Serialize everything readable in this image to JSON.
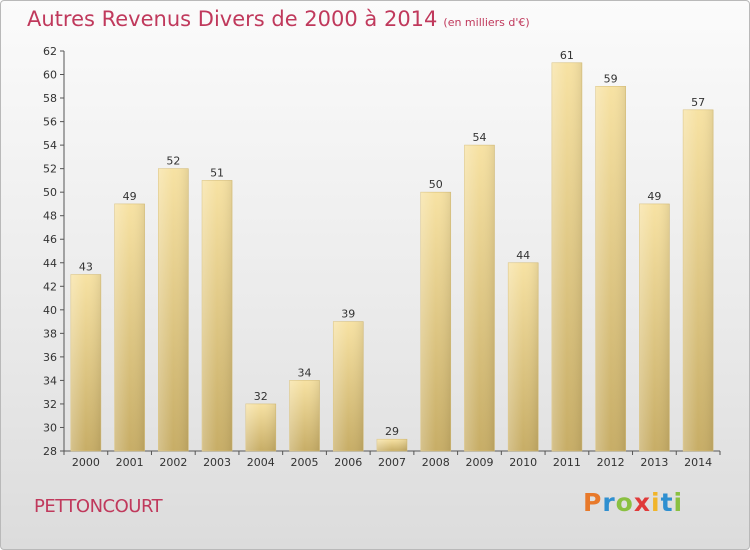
{
  "header": {
    "title": "Autres Revenus Divers de 2000 à 2014",
    "subtitle": "(en milliers d'€)"
  },
  "footer": {
    "commune": "PETTONCOURT",
    "logo_letters": [
      {
        "char": "P",
        "color": "#e8792a"
      },
      {
        "char": "r",
        "color": "#2e8fd0"
      },
      {
        "char": "o",
        "color": "#8ac041"
      },
      {
        "char": "x",
        "color": "#e03a3a"
      },
      {
        "char": "i",
        "color": "#f1b52a"
      },
      {
        "char": "t",
        "color": "#2e8fd0"
      },
      {
        "char": "i",
        "color": "#8ac041"
      }
    ]
  },
  "chart_data": {
    "type": "bar",
    "title": "Autres Revenus Divers de 2000 à 2014",
    "subtitle": "(en milliers d'€)",
    "categories": [
      "2000",
      "2001",
      "2002",
      "2003",
      "2004",
      "2005",
      "2006",
      "2007",
      "2008",
      "2009",
      "2010",
      "2011",
      "2012",
      "2013",
      "2014"
    ],
    "values": [
      43,
      49,
      52,
      51,
      32,
      34,
      39,
      29,
      50,
      54,
      44,
      61,
      59,
      49,
      57
    ],
    "ylim": [
      28,
      62
    ],
    "yticks": [
      28,
      30,
      32,
      34,
      36,
      38,
      40,
      42,
      44,
      46,
      48,
      50,
      52,
      54,
      56,
      58,
      60,
      62
    ],
    "grid": false,
    "bar_color": "#e6cd84"
  }
}
